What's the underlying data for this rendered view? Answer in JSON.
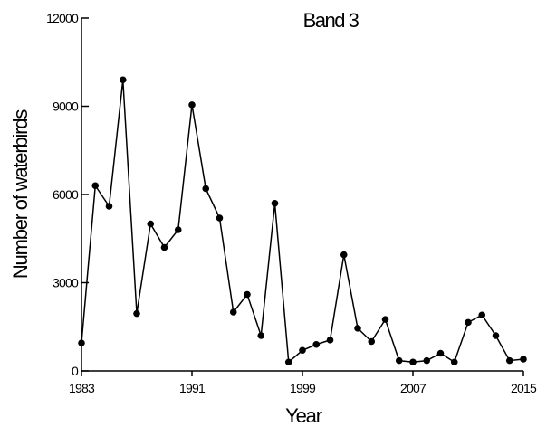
{
  "chart_data": {
    "type": "line",
    "title": "Band 3",
    "x_label": "Year",
    "y_label": "Number of waterbirds",
    "x": [
      1983,
      1984,
      1985,
      1986,
      1987,
      1988,
      1989,
      1990,
      1991,
      1992,
      1993,
      1994,
      1995,
      1996,
      1997,
      1998,
      1999,
      2000,
      2001,
      2002,
      2003,
      2004,
      2005,
      2006,
      2007,
      2008,
      2009,
      2010,
      2011,
      2012,
      2013,
      2014,
      2015
    ],
    "values": [
      950,
      6300,
      5600,
      9900,
      1950,
      5000,
      4200,
      4800,
      9050,
      6200,
      5200,
      2000,
      2600,
      1200,
      5700,
      300,
      700,
      900,
      1050,
      3950,
      1450,
      1000,
      1750,
      350,
      300,
      350,
      600,
      300,
      1650,
      1900,
      1200,
      350,
      400
    ],
    "color": "#000000",
    "xlim": [
      1983,
      2015
    ],
    "xticks": [
      1983,
      1991,
      1999,
      2007,
      2015
    ],
    "ylim": [
      0,
      12000
    ],
    "yticks": [
      0,
      3000,
      6000,
      9000,
      12000
    ]
  }
}
